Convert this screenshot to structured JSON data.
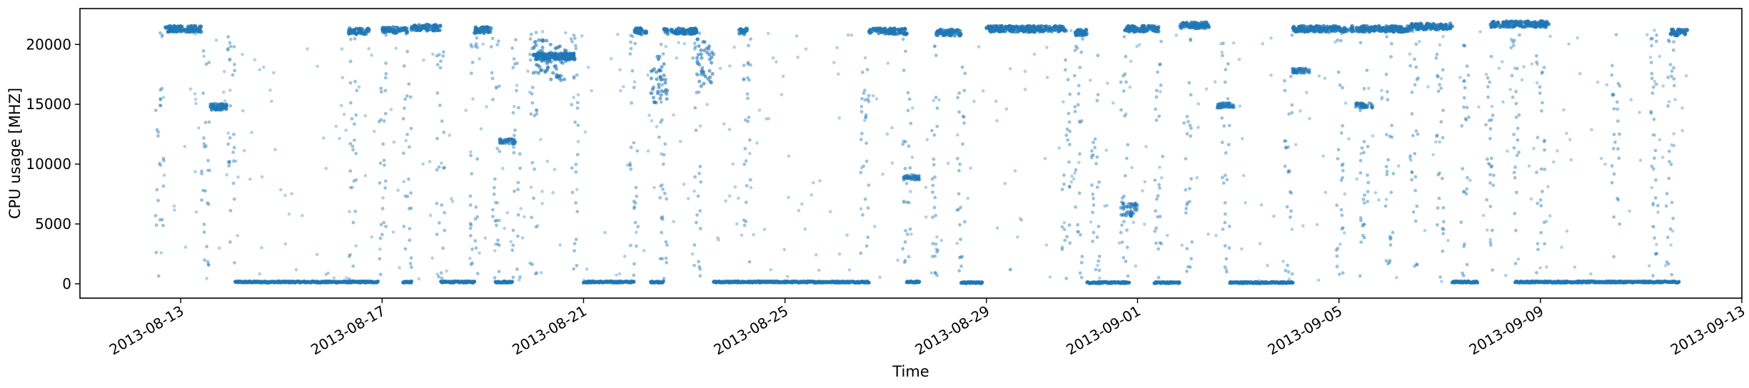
{
  "chart_data": {
    "type": "scatter",
    "title": "",
    "xlabel": "Time",
    "ylabel": "CPU usage [MHZ]",
    "x_axis_type": "date",
    "xlim": [
      "2013-08-11",
      "2013-09-13"
    ],
    "ylim": [
      -1200,
      23000
    ],
    "x_ticks": [
      "2013-08-13",
      "2013-08-17",
      "2013-08-21",
      "2013-08-25",
      "2013-08-29",
      "2013-09-01",
      "2013-09-05",
      "2013-09-09",
      "2013-09-13"
    ],
    "y_ticks": [
      0,
      5000,
      10000,
      15000,
      20000
    ],
    "y_tick_labels": [
      "0",
      "5000",
      "10000",
      "15000",
      "20000"
    ],
    "grid": false,
    "legend": "none",
    "marker_color": "#1f77b4",
    "marker_alpha": 0.45,
    "series": [
      {
        "low_baseline_segments": [
          {
            "start": "2013-08-14 02:00",
            "end": "2013-08-16 22:00",
            "y": 150
          },
          {
            "start": "2013-08-17 10:00",
            "end": "2013-08-17 14:00",
            "y": 150
          },
          {
            "start": "2013-08-18 04:00",
            "end": "2013-08-18 20:00",
            "y": 150
          },
          {
            "start": "2013-08-19 06:00",
            "end": "2013-08-19 14:00",
            "y": 150
          },
          {
            "start": "2013-08-21 00:00",
            "end": "2013-08-22 00:00",
            "y": 150
          },
          {
            "start": "2013-08-22 08:00",
            "end": "2013-08-22 14:00",
            "y": 150
          },
          {
            "start": "2013-08-23 14:00",
            "end": "2013-08-26 16:00",
            "y": 150
          },
          {
            "start": "2013-08-27 10:00",
            "end": "2013-08-27 16:00",
            "y": 150
          },
          {
            "start": "2013-08-28 12:00",
            "end": "2013-08-28 22:00",
            "y": 100
          },
          {
            "start": "2013-08-31 00:00",
            "end": "2013-08-31 20:00",
            "y": 100
          },
          {
            "start": "2013-09-01 08:00",
            "end": "2013-09-01 20:00",
            "y": 100
          },
          {
            "start": "2013-09-02 20:00",
            "end": "2013-09-04 02:00",
            "y": 100
          },
          {
            "start": "2013-09-07 06:00",
            "end": "2013-09-07 18:00",
            "y": 150
          },
          {
            "start": "2013-09-08 12:00",
            "end": "2013-09-11 18:00",
            "y": 150
          }
        ],
        "high_band_segments": [
          {
            "start": "2013-08-12 16:00",
            "end": "2013-08-13 10:00",
            "y": 21300
          },
          {
            "start": "2013-08-13 14:00",
            "end": "2013-08-13 22:00",
            "y": 14800
          },
          {
            "start": "2013-08-16 08:00",
            "end": "2013-08-16 18:00",
            "y": 21100
          },
          {
            "start": "2013-08-17 00:00",
            "end": "2013-08-17 12:00",
            "y": 21200
          },
          {
            "start": "2013-08-17 14:00",
            "end": "2013-08-18 04:00",
            "y": 21400
          },
          {
            "start": "2013-08-18 20:00",
            "end": "2013-08-19 04:00",
            "y": 21200
          },
          {
            "start": "2013-08-20 00:00",
            "end": "2013-08-20 20:00",
            "y": 19000
          },
          {
            "start": "2013-08-22 00:00",
            "end": "2013-08-22 06:00",
            "y": 21100
          },
          {
            "start": "2013-08-22 14:00",
            "end": "2013-08-23 06:00",
            "y": 21100
          },
          {
            "start": "2013-08-24 02:00",
            "end": "2013-08-24 06:00",
            "y": 21100
          },
          {
            "start": "2013-08-26 16:00",
            "end": "2013-08-27 10:00",
            "y": 21100
          },
          {
            "start": "2013-08-28 00:00",
            "end": "2013-08-28 12:00",
            "y": 21000
          },
          {
            "start": "2013-08-29 00:00",
            "end": "2013-08-30 14:00",
            "y": 21300
          },
          {
            "start": "2013-08-30 18:00",
            "end": "2013-08-31 00:00",
            "y": 21000
          },
          {
            "start": "2013-08-31 18:00",
            "end": "2013-09-01 10:00",
            "y": 21300
          },
          {
            "start": "2013-09-01 20:00",
            "end": "2013-09-02 10:00",
            "y": 21600
          },
          {
            "start": "2013-09-04 02:00",
            "end": "2013-09-06 10:00",
            "y": 21300
          },
          {
            "start": "2013-09-06 10:00",
            "end": "2013-09-07 06:00",
            "y": 21500
          },
          {
            "start": "2013-09-08 00:00",
            "end": "2013-09-09 04:00",
            "y": 21700
          },
          {
            "start": "2013-09-11 14:00",
            "end": "2013-09-11 22:00",
            "y": 21000
          }
        ],
        "mid_clusters": [
          {
            "date": "2013-08-20 04:00",
            "y": 19000,
            "spread": 1500
          },
          {
            "date": "2013-08-20 12:00",
            "y": 18500,
            "spread": 1500
          },
          {
            "date": "2013-08-22 12:00",
            "y": 17000,
            "spread": 2000
          },
          {
            "date": "2013-08-23 10:00",
            "y": 18500,
            "spread": 2000
          },
          {
            "date": "2013-08-19 12:00",
            "y": 11900,
            "spread": 200
          },
          {
            "date": "2013-08-31 20:00",
            "y": 6200,
            "spread": 600
          },
          {
            "date": "2013-09-02 18:00",
            "y": 14900,
            "spread": 200
          },
          {
            "date": "2013-08-27 12:00",
            "y": 8900,
            "spread": 200
          },
          {
            "date": "2013-09-05 12:00",
            "y": 14900,
            "spread": 200
          },
          {
            "date": "2013-09-04 06:00",
            "y": 17800,
            "spread": 200
          }
        ],
        "transition_dates": [
          "2013-08-12 14:00",
          "2013-08-13 12:00",
          "2013-08-14 00:00",
          "2013-08-16 10:00",
          "2013-08-17 00:00",
          "2013-08-17 12:00",
          "2013-08-18 04:00",
          "2013-08-18 20:00",
          "2013-08-19 06:00",
          "2013-08-19 16:00",
          "2013-08-20 00:00",
          "2013-08-20 20:00",
          "2013-08-22 00:00",
          "2013-08-22 14:00",
          "2013-08-23 06:00",
          "2013-08-24 06:00",
          "2013-08-26 14:00",
          "2013-08-27 10:00",
          "2013-08-28 00:00",
          "2013-08-28 12:00",
          "2013-08-30 14:00",
          "2013-08-30 20:00",
          "2013-08-31 04:00",
          "2013-08-31 18:00",
          "2013-09-01 10:00",
          "2013-09-02 00:00",
          "2013-09-02 18:00",
          "2013-09-04 00:00",
          "2013-09-05 00:00",
          "2013-09-05 12:00",
          "2013-09-06 00:00",
          "2013-09-06 12:00",
          "2013-09-07 00:00",
          "2013-09-07 12:00",
          "2013-09-08 00:00",
          "2013-09-08 12:00",
          "2013-09-09 00:00",
          "2013-09-10 12:00",
          "2013-09-11 06:00",
          "2013-09-11 14:00"
        ]
      }
    ]
  }
}
